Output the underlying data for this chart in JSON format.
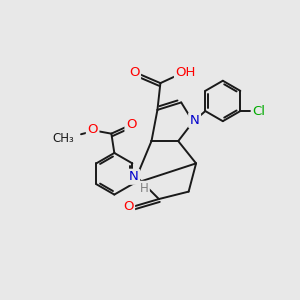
{
  "bg_color": "#e8e8e8",
  "bond_color": "#1a1a1a",
  "atom_colors": {
    "N": "#0000cc",
    "O": "#ff0000",
    "Cl": "#00aa00",
    "C": "#1a1a1a",
    "H": "#808080"
  },
  "bond_width": 1.4,
  "font_size": 8.5,
  "title": ""
}
